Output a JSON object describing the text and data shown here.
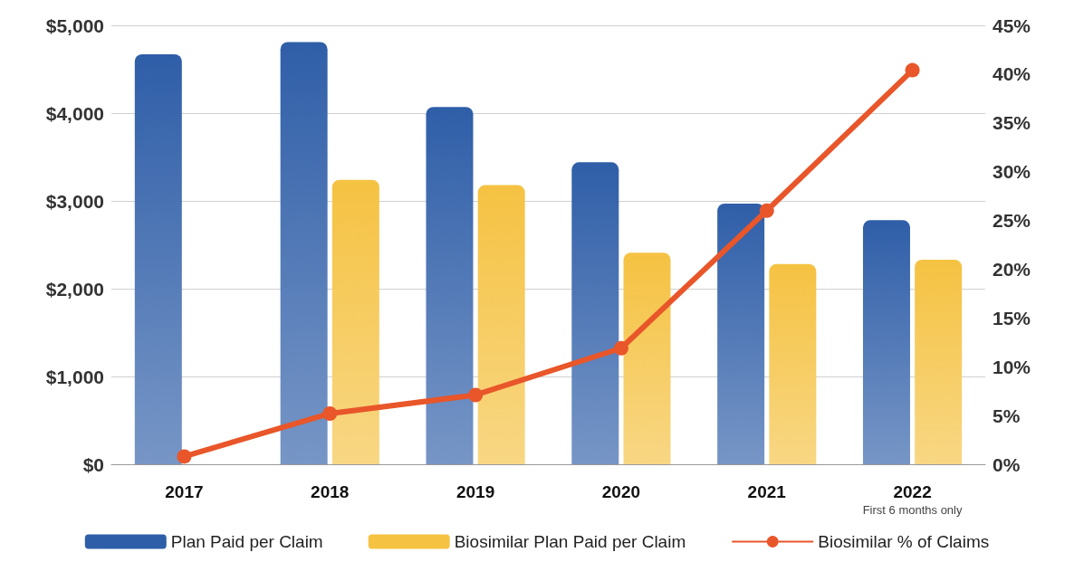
{
  "chart_data": {
    "type": "bar",
    "categories": [
      "2017",
      "2018",
      "2019",
      "2020",
      "2021",
      "2022"
    ],
    "series": [
      {
        "name": "Plan Paid per Claim",
        "color": "#2f5ea8",
        "values": [
          4670,
          4810,
          4070,
          3440,
          2970,
          2780
        ]
      },
      {
        "name": "Biosimilar Plan Paid per Claim",
        "color": "#f5c242",
        "values": [
          null,
          3240,
          3180,
          2410,
          2280,
          2330
        ]
      },
      {
        "name": "Biosimilar % of Claims",
        "type": "line",
        "axis": "y2",
        "color": "#e8562a",
        "marker": "circle",
        "values": [
          0.8,
          5.2,
          7.1,
          11.9,
          26,
          40.4
        ]
      }
    ],
    "ylim": [
      0,
      5000
    ],
    "yticks": [
      {
        "value": 0,
        "label": "$0"
      },
      {
        "value": 1000,
        "label": "$1,000"
      },
      {
        "value": 2000,
        "label": "$2,000"
      },
      {
        "value": 3000,
        "label": "$3,000"
      },
      {
        "value": 4000,
        "label": "$4,000"
      },
      {
        "value": 5000,
        "label": "$5,000"
      }
    ],
    "y2lim": [
      0,
      45
    ],
    "y2ticks": [
      {
        "value": 0,
        "label": "0%"
      },
      {
        "value": 5,
        "label": "5%"
      },
      {
        "value": 10,
        "label": "10%"
      },
      {
        "value": 15,
        "label": "15%"
      },
      {
        "value": 20,
        "label": "20%"
      },
      {
        "value": 25,
        "label": "25%"
      },
      {
        "value": 30,
        "label": "30%"
      },
      {
        "value": 35,
        "label": "35%"
      },
      {
        "value": 40,
        "label": "40%"
      },
      {
        "value": 45,
        "label": "45%"
      }
    ],
    "annotations": [
      "First 6 months only"
    ],
    "grid": "y",
    "legend": "bottom"
  }
}
